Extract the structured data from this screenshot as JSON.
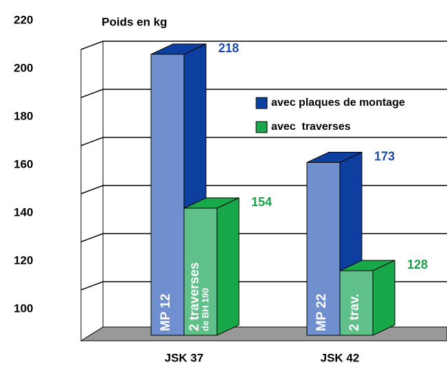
{
  "chart_data": {
    "type": "bar3d",
    "title": "Poids en kg",
    "categories": [
      "JSK 37",
      "JSK 42"
    ],
    "series": [
      {
        "name": "avec plaques de montage",
        "color": "#0d3fa0",
        "face": "#6f8fcf",
        "label_color": "#1a4ba8",
        "values": [
          218,
          173
        ]
      },
      {
        "name": "avec  traverses",
        "color": "#18a84a",
        "face": "#5fc08a",
        "label_color": "#1aa04a",
        "values": [
          154,
          128
        ]
      }
    ],
    "annotations": [
      [
        "MP 12"
      ],
      [
        "2 traverses",
        "de BH 190"
      ],
      [
        "MP 22"
      ],
      [
        "2 trav."
      ]
    ],
    "ylim": [
      100,
      220
    ],
    "yticks": [
      100,
      120,
      140,
      160,
      180,
      200,
      220
    ],
    "grid": true
  }
}
